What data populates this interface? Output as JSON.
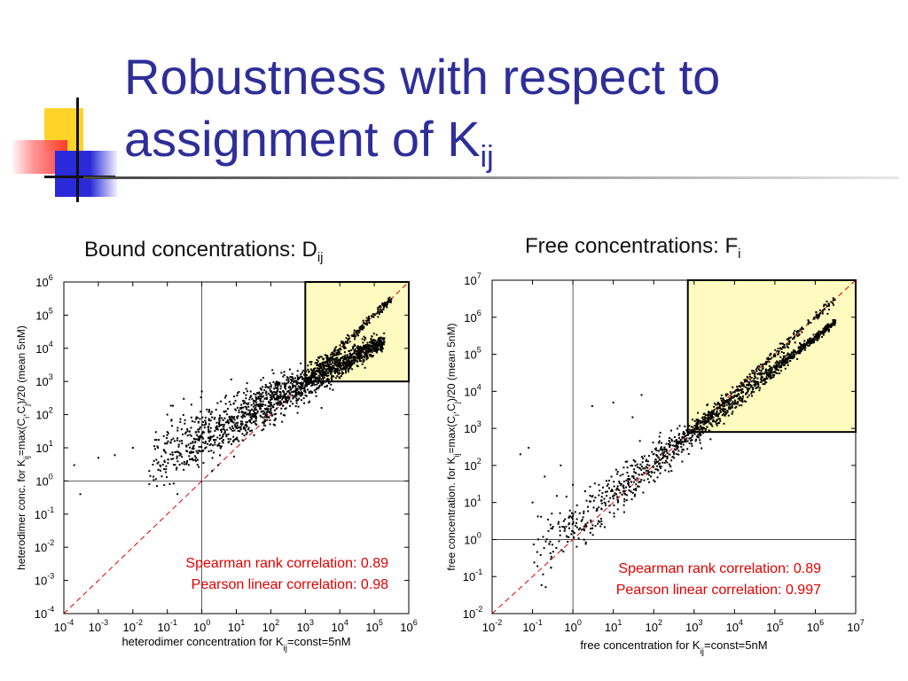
{
  "slide": {
    "title_line1": "Robustness with respect to",
    "title_line2": "assignment of K",
    "title_sub": "ij",
    "left_subtitle": "Bound concentrations: D",
    "left_subtitle_sub": "ij",
    "right_subtitle": "Free concentrations: F",
    "right_subtitle_sub": "i"
  },
  "chart_data": [
    {
      "type": "scatter",
      "log_x": true,
      "log_y": true,
      "xlim": [
        0.0001,
        1000000
      ],
      "ylim": [
        0.0001,
        1000000
      ],
      "xlabel": "heterodimer concentration for K",
      "xlabel_sub": "ij",
      "xlabel_tail": "=const=5nM",
      "ylabel": "heterodimer conc. for K",
      "ylabel_sub": "ij",
      "ylabel_mid": "=max(C",
      "ylabel_sub2": "i",
      ",": "",
      "ylabel_mid2": ",C",
      "ylabel_sub3": "j",
      "ylabel_tail": ")/20 (mean 5nM)",
      "x_ticks": [
        {
          "b": "10",
          "e": "-4"
        },
        {
          "b": "10",
          "e": "-3"
        },
        {
          "b": "10",
          "e": "-2"
        },
        {
          "b": "10",
          "e": "-1"
        },
        {
          "b": "10",
          "e": "0"
        },
        {
          "b": "10",
          "e": "1"
        },
        {
          "b": "10",
          "e": "2"
        },
        {
          "b": "10",
          "e": "3"
        },
        {
          "b": "10",
          "e": "4"
        },
        {
          "b": "10",
          "e": "5"
        },
        {
          "b": "10",
          "e": "6"
        }
      ],
      "y_ticks": [
        {
          "b": "10",
          "e": "-4"
        },
        {
          "b": "10",
          "e": "-3"
        },
        {
          "b": "10",
          "e": "-2"
        },
        {
          "b": "10",
          "e": "-1"
        },
        {
          "b": "10",
          "e": "0"
        },
        {
          "b": "10",
          "e": "1"
        },
        {
          "b": "10",
          "e": "2"
        },
        {
          "b": "10",
          "e": "3"
        },
        {
          "b": "10",
          "e": "4"
        },
        {
          "b": "10",
          "e": "5"
        },
        {
          "b": "10",
          "e": "6"
        }
      ],
      "reference_lines": {
        "x": 1,
        "y": 1
      },
      "diagonal": "y = x",
      "highlight_box": {
        "x": [
          1000,
          1000000
        ],
        "y": [
          1000,
          1000000
        ],
        "color": "#fdfbc0"
      },
      "annotations": [
        "Spearman rank correlation: 0.89",
        "Pearson linear correlation: 0.98"
      ],
      "annotation_color": "#e00000",
      "outliers": [
        [
          0.0002,
          3
        ],
        [
          0.0003,
          0.4
        ],
        [
          0.001,
          5
        ],
        [
          0.003,
          6
        ],
        [
          0.01,
          10
        ],
        [
          0.03,
          2
        ],
        [
          0.03,
          0.8
        ],
        [
          0.05,
          0.7
        ],
        [
          0.1,
          100
        ],
        [
          0.1,
          30
        ],
        [
          0.2,
          40
        ],
        [
          0.3,
          300
        ],
        [
          0.5,
          200
        ],
        [
          1,
          500
        ],
        [
          2,
          2
        ],
        [
          3,
          3
        ]
      ],
      "cloud": {
        "n": 1700,
        "log_x_range": [
          -1.5,
          5.3
        ],
        "slope": 0.55,
        "intercept": 1.3,
        "spread": 0.45
      }
    },
    {
      "type": "scatter",
      "log_x": true,
      "log_y": true,
      "xlim": [
        0.01,
        10000000
      ],
      "ylim": [
        0.01,
        10000000
      ],
      "xlabel": "free concentration for K",
      "xlabel_sub": "ij",
      "xlabel_tail": "=const=5nM",
      "ylabel": "free concentration. for K",
      "ylabel_sub": "ij",
      "ylabel_mid": "=max(C",
      "ylabel_sub2": "i",
      "ylabel_mid2": ",C",
      "ylabel_sub3": "j",
      "ylabel_tail": ")/20 (mean 5nM)",
      "x_ticks": [
        {
          "b": "10",
          "e": "-2"
        },
        {
          "b": "10",
          "e": "-1"
        },
        {
          "b": "10",
          "e": "0"
        },
        {
          "b": "10",
          "e": "1"
        },
        {
          "b": "10",
          "e": "2"
        },
        {
          "b": "10",
          "e": "3"
        },
        {
          "b": "10",
          "e": "4"
        },
        {
          "b": "10",
          "e": "5"
        },
        {
          "b": "10",
          "e": "6"
        },
        {
          "b": "10",
          "e": "7"
        }
      ],
      "y_ticks": [
        {
          "b": "10",
          "e": "-2"
        },
        {
          "b": "10",
          "e": "-1"
        },
        {
          "b": "10",
          "e": "0"
        },
        {
          "b": "10",
          "e": "1"
        },
        {
          "b": "10",
          "e": "2"
        },
        {
          "b": "10",
          "e": "3"
        },
        {
          "b": "10",
          "e": "4"
        },
        {
          "b": "10",
          "e": "5"
        },
        {
          "b": "10",
          "e": "6"
        },
        {
          "b": "10",
          "e": "7"
        }
      ],
      "reference_lines": {
        "x": 1,
        "y": 1
      },
      "diagonal": "y = x",
      "highlight_box": {
        "x": [
          700,
          10000000
        ],
        "y": [
          800,
          10000000
        ],
        "color": "#fdfbc0"
      },
      "annotations": [
        "Spearman rank correlation: 0.89",
        "Pearson linear correlation: 0.997"
      ],
      "annotation_color": "#e00000",
      "outliers": [
        [
          0.05,
          200
        ],
        [
          0.08,
          300
        ],
        [
          0.1,
          10
        ],
        [
          0.2,
          50
        ],
        [
          0.3,
          5
        ],
        [
          0.4,
          15
        ],
        [
          0.5,
          100
        ],
        [
          1,
          30
        ],
        [
          2,
          20
        ],
        [
          3,
          4000
        ],
        [
          10,
          5000
        ],
        [
          30,
          2000
        ],
        [
          50,
          8000
        ]
      ],
      "cloud": {
        "n": 1200,
        "log_x_range": [
          -1,
          6.5
        ],
        "slope": 0.85,
        "intercept": 0.35,
        "spread": 0.35
      }
    }
  ]
}
